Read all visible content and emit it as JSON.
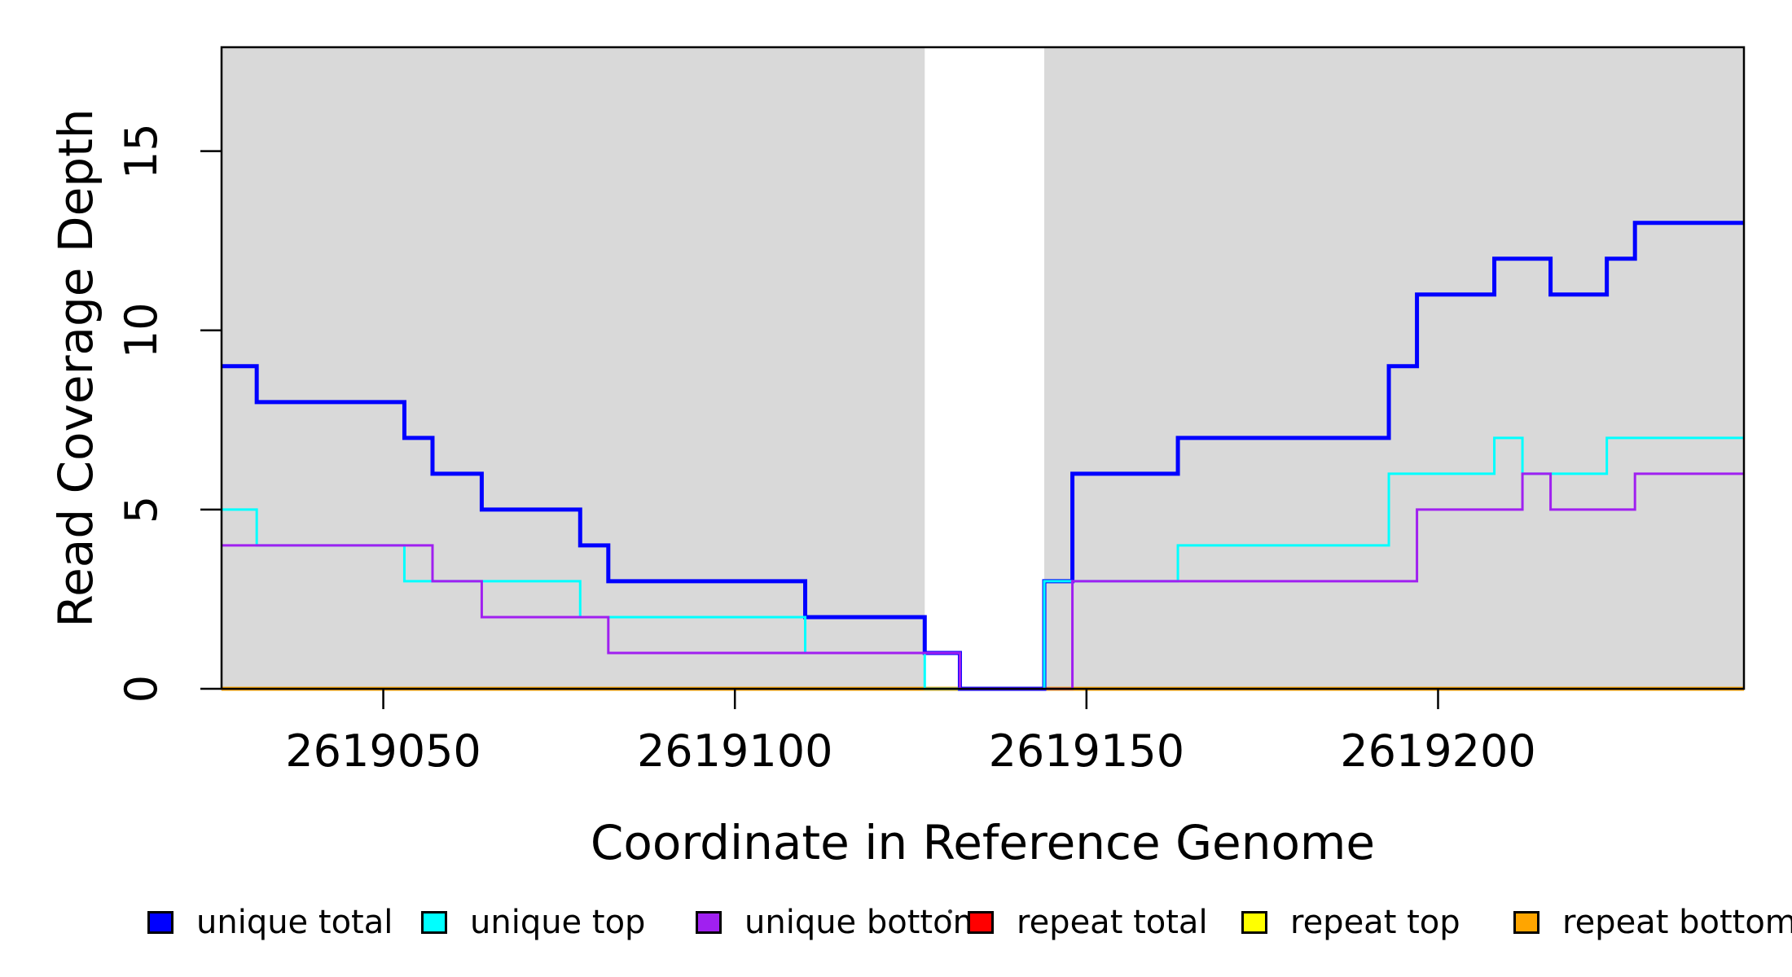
{
  "figure": {
    "background": "#FFFFFF"
  },
  "chart_data": {
    "type": "line",
    "subtype": "step-post",
    "title": "",
    "xlabel": "Coordinate in Reference Genome",
    "ylabel": "Read Coverage Depth",
    "xlim": [
      2619027,
      2619243.5
    ],
    "ylim": [
      0,
      17.9
    ],
    "x_ticks": [
      2619050,
      2619100,
      2619150,
      2619200
    ],
    "y_ticks": [
      0,
      5,
      10,
      15
    ],
    "grid": false,
    "band_color": "#D9D9D9",
    "shaded_regions": [
      {
        "x0": 2619027,
        "x1": 2619127,
        "label": "covered-region-left"
      },
      {
        "x0": 2619144,
        "x1": 2619243.5,
        "label": "covered-region-right"
      }
    ],
    "legend_position": "bottom",
    "draw_order": [
      3,
      4,
      5,
      0,
      1,
      2
    ],
    "series": [
      {
        "name": "unique total",
        "color": "#0000FF",
        "line_width": 5,
        "start_value": 9,
        "steps": [
          [
            2619032,
            8
          ],
          [
            2619053,
            7
          ],
          [
            2619057,
            6
          ],
          [
            2619064,
            5
          ],
          [
            2619078,
            4
          ],
          [
            2619082,
            3
          ],
          [
            2619110,
            2
          ],
          [
            2619127,
            1
          ],
          [
            2619132,
            0
          ],
          [
            2619144,
            3
          ],
          [
            2619148,
            6
          ],
          [
            2619163,
            7
          ],
          [
            2619193,
            9
          ],
          [
            2619197,
            11
          ],
          [
            2619208,
            12
          ],
          [
            2619216,
            11
          ],
          [
            2619224,
            12
          ],
          [
            2619228,
            13
          ]
        ]
      },
      {
        "name": "unique top",
        "color": "#00FFFF",
        "line_width": 3,
        "start_value": 5,
        "steps": [
          [
            2619032,
            4
          ],
          [
            2619053,
            3
          ],
          [
            2619078,
            2
          ],
          [
            2619110,
            1
          ],
          [
            2619127,
            0
          ],
          [
            2619144,
            3
          ],
          [
            2619163,
            4
          ],
          [
            2619193,
            6
          ],
          [
            2619208,
            7
          ],
          [
            2619212,
            6
          ],
          [
            2619224,
            7
          ]
        ]
      },
      {
        "name": "unique bottom",
        "color": "#A020F0",
        "line_width": 3,
        "start_value": 4,
        "steps": [
          [
            2619057,
            3
          ],
          [
            2619064,
            2
          ],
          [
            2619082,
            1
          ],
          [
            2619132,
            0
          ],
          [
            2619148,
            3
          ],
          [
            2619197,
            5
          ],
          [
            2619212,
            6
          ],
          [
            2619216,
            5
          ],
          [
            2619228,
            6
          ]
        ]
      },
      {
        "name": "repeat total",
        "color": "#FF0000",
        "line_width": 4.5,
        "start_value": 0,
        "steps": []
      },
      {
        "name": "repeat top",
        "color": "#FFFF00",
        "line_width": 4.5,
        "start_value": 0,
        "steps": []
      },
      {
        "name": "repeat bottom",
        "color": "#FFA500",
        "line_width": 4.5,
        "start_value": 0,
        "steps": []
      }
    ]
  },
  "legend": {
    "labels": [
      "unique total",
      "unique top",
      "unique bottom",
      "repeat total",
      "repeat top",
      "repeat bottom"
    ]
  }
}
